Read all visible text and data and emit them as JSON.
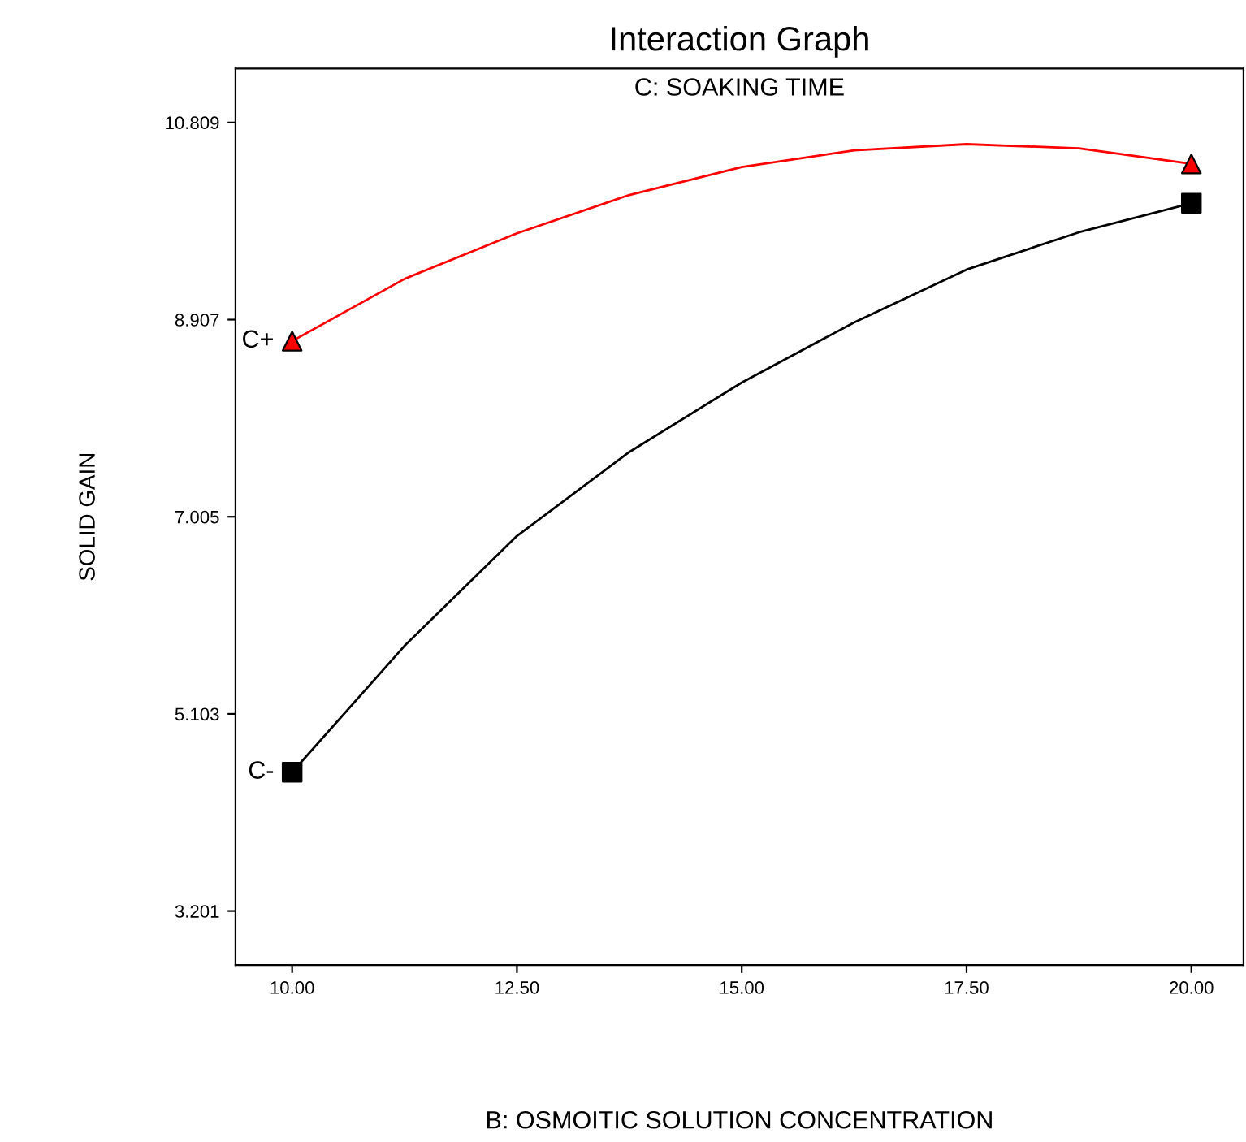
{
  "chart_data": {
    "type": "line",
    "title": "Interaction Graph",
    "xlabel": "B: OSMOITIC SOLUTION CONCENTRATION",
    "ylabel": "SOLID GAIN",
    "annotations": [
      "C: SOAKING TIME"
    ],
    "series": [
      {
        "color": "#ff0000",
        "x": [
          10,
          11.25,
          12.5,
          13.75,
          15,
          16.25,
          17.5,
          18.75,
          20
        ],
        "values": [
          8.7,
          9.3,
          9.74,
          10.11,
          10.38,
          10.54,
          10.6,
          10.56,
          10.41
        ],
        "marker": "none"
      },
      {
        "color": "#000000",
        "x": [
          10,
          11.25,
          12.5,
          13.75,
          15,
          16.25,
          17.5,
          18.75,
          20
        ],
        "values": [
          4.54,
          5.76,
          6.82,
          7.63,
          8.3,
          8.88,
          9.39,
          9.75,
          10.03
        ],
        "marker": "none"
      },
      {
        "type": "scatter",
        "name": "C+",
        "color": "#ff0000",
        "x": [
          10,
          20
        ],
        "values": [
          8.7,
          10.41
        ],
        "marker": "triangle"
      },
      {
        "type": "scatter",
        "name": "C-",
        "color": "#000000",
        "x": [
          10,
          20
        ],
        "values": [
          4.54,
          10.03
        ],
        "marker": "square"
      }
    ],
    "xlim": [
      9.37,
      20.58
    ],
    "ylim": [
      2.68,
      11.33
    ],
    "xticks": [
      {
        "value": 10,
        "label": "10.00"
      },
      {
        "value": 12.5,
        "label": "12.50"
      },
      {
        "value": 15,
        "label": "15.00"
      },
      {
        "value": 17.5,
        "label": "17.50"
      },
      {
        "value": 20,
        "label": "20.00"
      }
    ],
    "yticks": [
      3.201,
      5.103,
      7.005,
      8.907,
      10.809
    ],
    "grid": false,
    "legend": false
  }
}
